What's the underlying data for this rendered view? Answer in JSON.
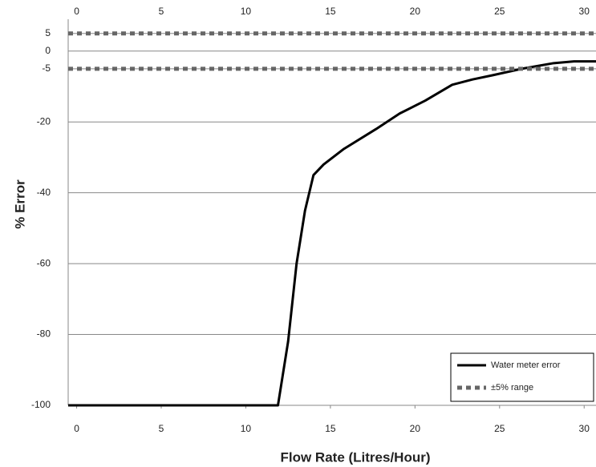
{
  "chart_data": {
    "type": "line",
    "x_label": "Flow Rate  (Litres/Hour)",
    "y_label": "% Error",
    "xlim": [
      -0.5,
      30.7
    ],
    "xticks": [
      0,
      5,
      10,
      15,
      20,
      25,
      30
    ],
    "ylim": [
      -100,
      9
    ],
    "yticks": [
      5,
      0,
      -5,
      -20,
      -40,
      -60,
      -80,
      -100
    ],
    "grid": true,
    "legend": "lower right",
    "series": [
      {
        "name": "Water meter error",
        "color": "#000000",
        "x": [
          -0.5,
          11.9,
          12.5,
          13.0,
          13.5,
          14.0,
          14.6,
          15.8,
          17.7,
          19.1,
          20.6,
          22.2,
          23.4,
          24.6,
          26.3,
          28.2,
          29.4,
          30.7
        ],
        "values": [
          -100,
          -100,
          -82,
          -60,
          -45,
          -35,
          -32,
          -27.6,
          -22,
          -17.6,
          -14,
          -9.5,
          -8,
          -6.8,
          -5,
          -3.4,
          -2.9,
          -2.9
        ]
      },
      {
        "name": "±5% range",
        "color": "#666666",
        "hlines": [
          5,
          -5
        ]
      }
    ]
  }
}
